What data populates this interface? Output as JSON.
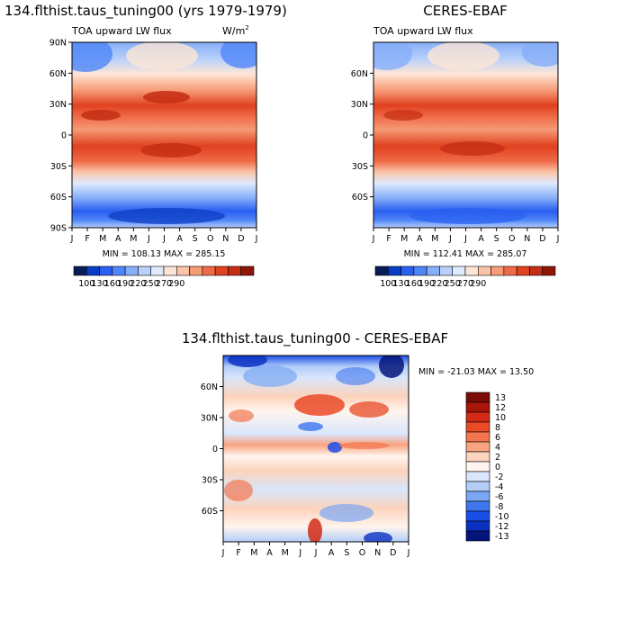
{
  "chart_data": [
    {
      "type": "heatmap",
      "title": "134.flthist.taus_tuning00 (yrs 1979-1979)",
      "variable": "TOA upward LW flux",
      "units": "W/m",
      "units_superscript": "2",
      "x_tick_labels": [
        "J",
        "F",
        "M",
        "A",
        "M",
        "J",
        "J",
        "A",
        "S",
        "O",
        "N",
        "D",
        "J"
      ],
      "y_tick_labels": [
        "90N",
        "60N",
        "30N",
        "0",
        "30S",
        "60S",
        "90S"
      ],
      "min_max_text": "MIN = 108.13 MAX = 285.15",
      "colorbar_labels": [
        "100",
        "130",
        "160",
        "190",
        "220",
        "250",
        "270",
        "290"
      ]
    },
    {
      "type": "heatmap",
      "title": "CERES-EBAF",
      "variable": "TOA upward LW flux",
      "x_tick_labels": [
        "J",
        "F",
        "M",
        "A",
        "M",
        "J",
        "J",
        "A",
        "S",
        "O",
        "N",
        "D",
        "J"
      ],
      "y_tick_labels": [
        "60N",
        "30N",
        "0",
        "30S",
        "60S"
      ],
      "min_max_text": "MIN = 112.41 MAX = 285.07",
      "colorbar_labels": [
        "100",
        "130",
        "160",
        "190",
        "220",
        "250",
        "270",
        "290"
      ]
    },
    {
      "type": "heatmap",
      "title": "134.flthist.taus_tuning00 - CERES-EBAF",
      "x_tick_labels": [
        "J",
        "F",
        "M",
        "A",
        "M",
        "J",
        "J",
        "A",
        "S",
        "O",
        "N",
        "D",
        "J"
      ],
      "y_tick_labels": [
        "60N",
        "30N",
        "0",
        "30S",
        "60S"
      ],
      "min_max_text": "MIN = -21.03 MAX =  13.50",
      "colorbar_labels": [
        "13",
        "12",
        "10",
        "8",
        "6",
        "4",
        "2",
        "0",
        "-2",
        "-4",
        "-6",
        "-8",
        "-10",
        "-12",
        "-13"
      ]
    }
  ],
  "colors": {
    "abs_scale": [
      "#081d58",
      "#0b3cc4",
      "#2a5ff0",
      "#4f86f7",
      "#86aef9",
      "#b8d0fb",
      "#dfeafd",
      "#fde6d6",
      "#fbc4a8",
      "#f79a76",
      "#ef6a47",
      "#e0411f",
      "#c42d13",
      "#8e1608"
    ],
    "diff_scale": [
      "#7a0b05",
      "#a8160a",
      "#d22a14",
      "#ea4a26",
      "#f3764e",
      "#f9a480",
      "#fcd3bd",
      "#fff5ee",
      "#d9e6fb",
      "#b3cdf8",
      "#7aa6f3",
      "#3f77ee",
      "#1b4ee6",
      "#0a32c2",
      "#03157a"
    ]
  }
}
